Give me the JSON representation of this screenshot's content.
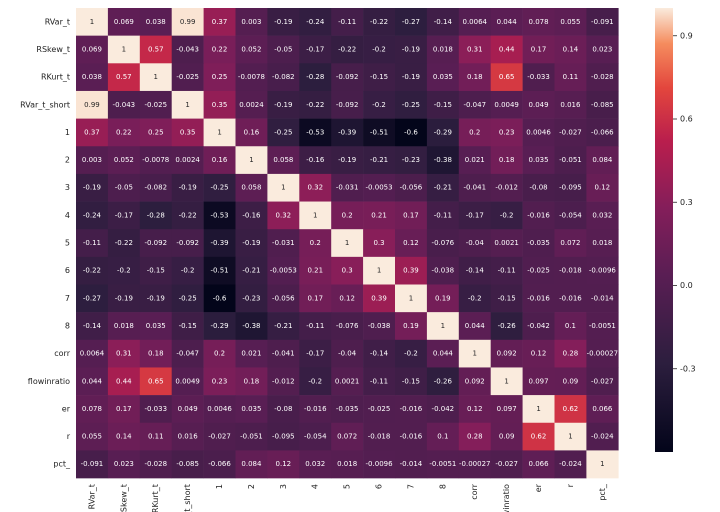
{
  "chart_data": {
    "type": "heatmap",
    "title": "",
    "xlabel": "",
    "ylabel": "",
    "labels": [
      "RVar_t",
      "RSkew_t",
      "RKurt_t",
      "RVar_t_short",
      "1",
      "2",
      "3",
      "4",
      "5",
      "6",
      "7",
      "8",
      "corr",
      "flowinratio",
      "er",
      "r",
      "pct_"
    ],
    "matrix": [
      [
        "1",
        "0.069",
        "0.038",
        "0.99",
        "0.37",
        "0.003",
        "-0.19",
        "-0.24",
        "-0.11",
        "-0.22",
        "-0.27",
        "-0.14",
        "0.0064",
        "0.044",
        "0.078",
        "0.055",
        "-0.091"
      ],
      [
        "0.069",
        "1",
        "0.57",
        "-0.043",
        "0.22",
        "0.052",
        "-0.05",
        "-0.17",
        "-0.22",
        "-0.2",
        "-0.19",
        "0.018",
        "0.31",
        "0.44",
        "0.17",
        "0.14",
        "0.023"
      ],
      [
        "0.038",
        "0.57",
        "1",
        "-0.025",
        "0.25",
        "-0.0078",
        "-0.082",
        "-0.28",
        "-0.092",
        "-0.15",
        "-0.19",
        "0.035",
        "0.18",
        "0.65",
        "-0.033",
        "0.11",
        "-0.028"
      ],
      [
        "0.99",
        "-0.043",
        "-0.025",
        "1",
        "0.35",
        "0.0024",
        "-0.19",
        "-0.22",
        "-0.092",
        "-0.2",
        "-0.25",
        "-0.15",
        "-0.047",
        "0.0049",
        "0.049",
        "0.016",
        "-0.085"
      ],
      [
        "0.37",
        "0.22",
        "0.25",
        "0.35",
        "1",
        "0.16",
        "-0.25",
        "-0.53",
        "-0.39",
        "-0.51",
        "-0.6",
        "-0.29",
        "0.2",
        "0.23",
        "0.0046",
        "-0.027",
        "-0.066"
      ],
      [
        "0.003",
        "0.052",
        "-0.0078",
        "0.0024",
        "0.16",
        "1",
        "0.058",
        "-0.16",
        "-0.19",
        "-0.21",
        "-0.23",
        "-0.38",
        "0.021",
        "0.18",
        "0.035",
        "-0.051",
        "0.084"
      ],
      [
        "-0.19",
        "-0.05",
        "-0.082",
        "-0.19",
        "-0.25",
        "0.058",
        "1",
        "0.32",
        "-0.031",
        "-0.0053",
        "-0.056",
        "-0.21",
        "-0.041",
        "-0.012",
        "-0.08",
        "-0.095",
        "0.12"
      ],
      [
        "-0.24",
        "-0.17",
        "-0.28",
        "-0.22",
        "-0.53",
        "-0.16",
        "0.32",
        "1",
        "0.2",
        "0.21",
        "0.17",
        "-0.11",
        "-0.17",
        "-0.2",
        "-0.016",
        "-0.054",
        "0.032"
      ],
      [
        "-0.11",
        "-0.22",
        "-0.092",
        "-0.092",
        "-0.39",
        "-0.19",
        "-0.031",
        "0.2",
        "1",
        "0.3",
        "0.12",
        "-0.076",
        "-0.04",
        "0.0021",
        "-0.035",
        "0.072",
        "0.018"
      ],
      [
        "-0.22",
        "-0.2",
        "-0.15",
        "-0.2",
        "-0.51",
        "-0.21",
        "-0.0053",
        "0.21",
        "0.3",
        "1",
        "0.39",
        "-0.038",
        "-0.14",
        "-0.11",
        "-0.025",
        "-0.018",
        "-0.0096"
      ],
      [
        "-0.27",
        "-0.19",
        "-0.19",
        "-0.25",
        "-0.6",
        "-0.23",
        "-0.056",
        "0.17",
        "0.12",
        "0.39",
        "1",
        "0.19",
        "-0.2",
        "-0.15",
        "-0.016",
        "-0.016",
        "-0.014"
      ],
      [
        "-0.14",
        "0.018",
        "0.035",
        "-0.15",
        "-0.29",
        "-0.38",
        "-0.21",
        "-0.11",
        "-0.076",
        "-0.038",
        "0.19",
        "1",
        "0.044",
        "-0.26",
        "-0.042",
        "0.1",
        "-0.0051"
      ],
      [
        "0.0064",
        "0.31",
        "0.18",
        "-0.047",
        "0.2",
        "0.021",
        "-0.041",
        "-0.17",
        "-0.04",
        "-0.14",
        "-0.2",
        "0.044",
        "1",
        "0.092",
        "0.12",
        "0.28",
        "-0.00027"
      ],
      [
        "0.044",
        "0.44",
        "0.65",
        "0.0049",
        "0.23",
        "0.18",
        "-0.012",
        "-0.2",
        "0.0021",
        "-0.11",
        "-0.15",
        "-0.26",
        "0.092",
        "1",
        "0.097",
        "0.09",
        "-0.027"
      ],
      [
        "0.078",
        "0.17",
        "-0.033",
        "0.049",
        "0.0046",
        "0.035",
        "-0.08",
        "-0.016",
        "-0.035",
        "-0.025",
        "-0.016",
        "-0.042",
        "0.12",
        "0.097",
        "1",
        "0.62",
        "0.066"
      ],
      [
        "0.055",
        "0.14",
        "0.11",
        "0.016",
        "-0.027",
        "-0.051",
        "-0.095",
        "-0.054",
        "0.072",
        "-0.018",
        "-0.016",
        "0.1",
        "0.28",
        "0.09",
        "0.62",
        "1",
        "-0.024"
      ],
      [
        "-0.091",
        "0.023",
        "-0.028",
        "-0.085",
        "-0.066",
        "0.084",
        "0.12",
        "0.032",
        "0.018",
        "-0.0096",
        "-0.014",
        "-0.0051",
        "-0.00027",
        "-0.027",
        "0.066",
        "-0.024",
        "1"
      ]
    ],
    "vmin": -0.6,
    "vmax": 1,
    "colormap": "rocket",
    "colorbar_ticks": [
      "0.9",
      "0.6",
      "0.3",
      "0.0",
      "-0.3"
    ],
    "grid": false,
    "legend": "colorbar-right"
  }
}
